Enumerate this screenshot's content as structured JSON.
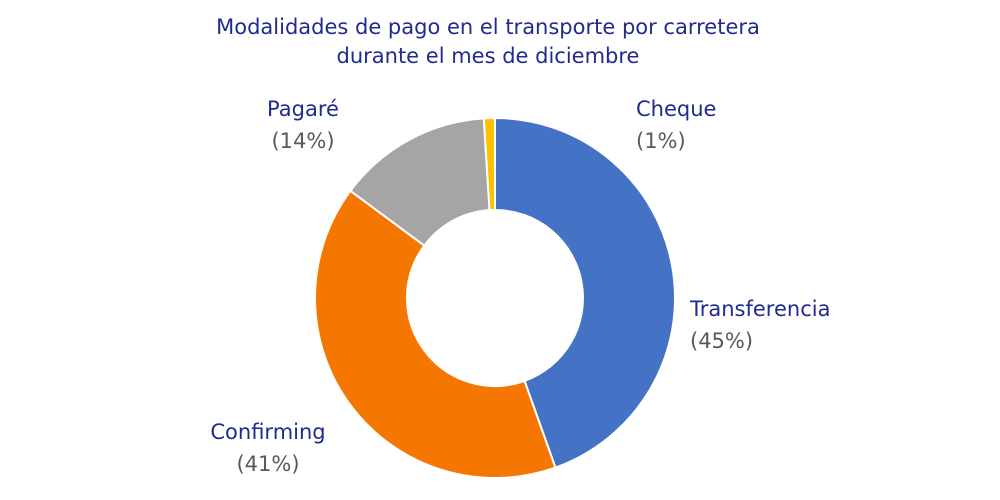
{
  "chart_data": {
    "type": "pie",
    "variant": "donut",
    "title_lines": [
      "Modalidades de pago en el transporte por carretera",
      "durante el mes de diciembre"
    ],
    "slices": [
      {
        "label": "Transferencia",
        "value": 45,
        "value_label": "(45%)",
        "color": "#4472c4"
      },
      {
        "label": "Confirming",
        "value": 41,
        "value_label": "(41%)",
        "color": "#f57600"
      },
      {
        "label": "Pagaré",
        "value": 14,
        "value_label": "(14%)",
        "color": "#a5a5a5"
      },
      {
        "label": "Cheque",
        "value": 1,
        "value_label": "(1%)",
        "color": "#ffc000"
      }
    ],
    "legend": "none",
    "label_color": "#1f2b8f",
    "percent_color": "#595959"
  }
}
